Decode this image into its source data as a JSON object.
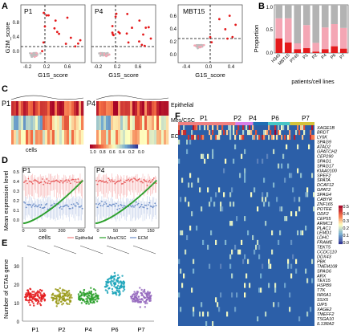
{
  "panel_letters": {
    "a": "A",
    "b": "B",
    "c": "C",
    "d": "D",
    "e": "E",
    "f": "F"
  },
  "panel_a": {
    "ylabel": "G2M_score",
    "plots": [
      {
        "label": "P1",
        "xlabel": "G1S_score",
        "xticks": [
          "-0.2",
          "0.2",
          "0.6"
        ],
        "yticks": [
          "0.8",
          "0.4",
          "0.0"
        ]
      },
      {
        "label": "P4",
        "xlabel": "G1S_score",
        "xticks": [
          "-0.2",
          "0.2",
          "0.6"
        ],
        "yticks": []
      },
      {
        "label": "MBT15",
        "xlabel": "G1S_score",
        "xticks": [
          "-0.4",
          "0.0",
          "0.4"
        ],
        "yticks": [
          "0.6",
          "0.4",
          "0.2",
          "0.0"
        ]
      }
    ]
  },
  "panel_b": {
    "ylabel": "Proportion",
    "xlabel": "patients/cell lines",
    "yticks": [
      "1.0",
      "0.5",
      "0.0"
    ],
    "colors": {
      "high": "#e41a1c",
      "mid": "#f4a6b4",
      "low": "#b3b3b3"
    },
    "chart_data": {
      "type": "bar",
      "categories": [
        "H345",
        "MBT15",
        "PT45",
        "P1",
        "P2",
        "P4",
        "P6",
        "P7"
      ],
      "series": [
        {
          "values": [
            0.3,
            0.22,
            0.08,
            0.1,
            0.03,
            0.08,
            0.14,
            0.09
          ]
        },
        {
          "values": [
            0.42,
            0.5,
            0.12,
            0.48,
            0.18,
            0.45,
            0.46,
            0.43
          ]
        },
        {
          "values": [
            0.28,
            0.28,
            0.8,
            0.42,
            0.79,
            0.47,
            0.4,
            0.48
          ]
        }
      ],
      "ylim": [
        0,
        1
      ]
    }
  },
  "panel_c": {
    "plots": [
      {
        "label": "P1"
      },
      {
        "label": "P4"
      }
    ],
    "rows": [
      "Epithelial",
      "Mes/CSC",
      "ECM"
    ],
    "xlabel": "cells",
    "colorbar_ticks": [
      "1.0",
      "0.8",
      "0.6",
      "0.4",
      "0.2",
      "0.0"
    ]
  },
  "panel_d": {
    "ylabel": "Mean expression level",
    "xlabel": "cells",
    "plots": [
      {
        "label": "P1",
        "xticks": [
          "0",
          "100",
          "200",
          "300"
        ],
        "yticks": [
          "0.5",
          "0.4",
          "0.3",
          "0.2",
          "0.1",
          "0.0"
        ]
      },
      {
        "label": "P4",
        "xticks": [
          "0",
          "50",
          "100",
          "150"
        ]
      }
    ],
    "legend": [
      {
        "label": "Epithelial",
        "color": "#f08080"
      },
      {
        "label": "Mes/CSC",
        "color": "#2ca02c"
      },
      {
        "label": "ECM",
        "color": "#6a8cc7"
      }
    ]
  },
  "panel_e": {
    "ylabel": "Number of CTAs gene",
    "yticks": [
      "30",
      "20",
      "10",
      "0"
    ],
    "groups": [
      {
        "label": "P1",
        "color": "#e41a1c"
      },
      {
        "label": "P2",
        "color": "#9a9a1a"
      },
      {
        "label": "P4",
        "color": "#2ca02c"
      },
      {
        "label": "P6",
        "color": "#17a2b8"
      },
      {
        "label": "P7",
        "color": "#9467bd"
      }
    ]
  },
  "panel_f": {
    "groups": [
      {
        "label": "P1",
        "color": "#f08080"
      },
      {
        "label": "P2",
        "color": "#d77ee8"
      },
      {
        "label": "P4",
        "color": "#1f6fb4"
      },
      {
        "label": "P6",
        "color": "#46c6c6"
      },
      {
        "label": "P7",
        "color": "#d4c23a"
      }
    ],
    "genes": [
      "XAGE1B",
      "BRDT",
      "LY6K",
      "SPAG9",
      "ATAD2",
      "GPATCH2",
      "CEP290",
      "SPAG1",
      "SPAG17",
      "KIAA0100",
      "SPEF2",
      "SPATA",
      "DCAF12",
      "GPAT2",
      "SPAG4",
      "CABYR",
      "ZNF165",
      "POTEE",
      "ODF2",
      "CEP55",
      "ARMC3",
      "PLAC1",
      "LEMD1",
      "LDHC",
      "FRAME",
      "TEKT5",
      "CCDC110",
      "DDX43",
      "PBK",
      "TMEM108",
      "SPAG6",
      "ARX",
      "TEX15",
      "HSPB9",
      "TTK",
      "NR6A1",
      "SSX5",
      "OIP5",
      "XAGE2",
      "TMEFF2",
      "TSGA10",
      "IL13RA2"
    ],
    "colorbar_ticks": [
      "0.5",
      "0.4",
      "0.3",
      "0.2",
      "0.1",
      "0.0"
    ]
  }
}
